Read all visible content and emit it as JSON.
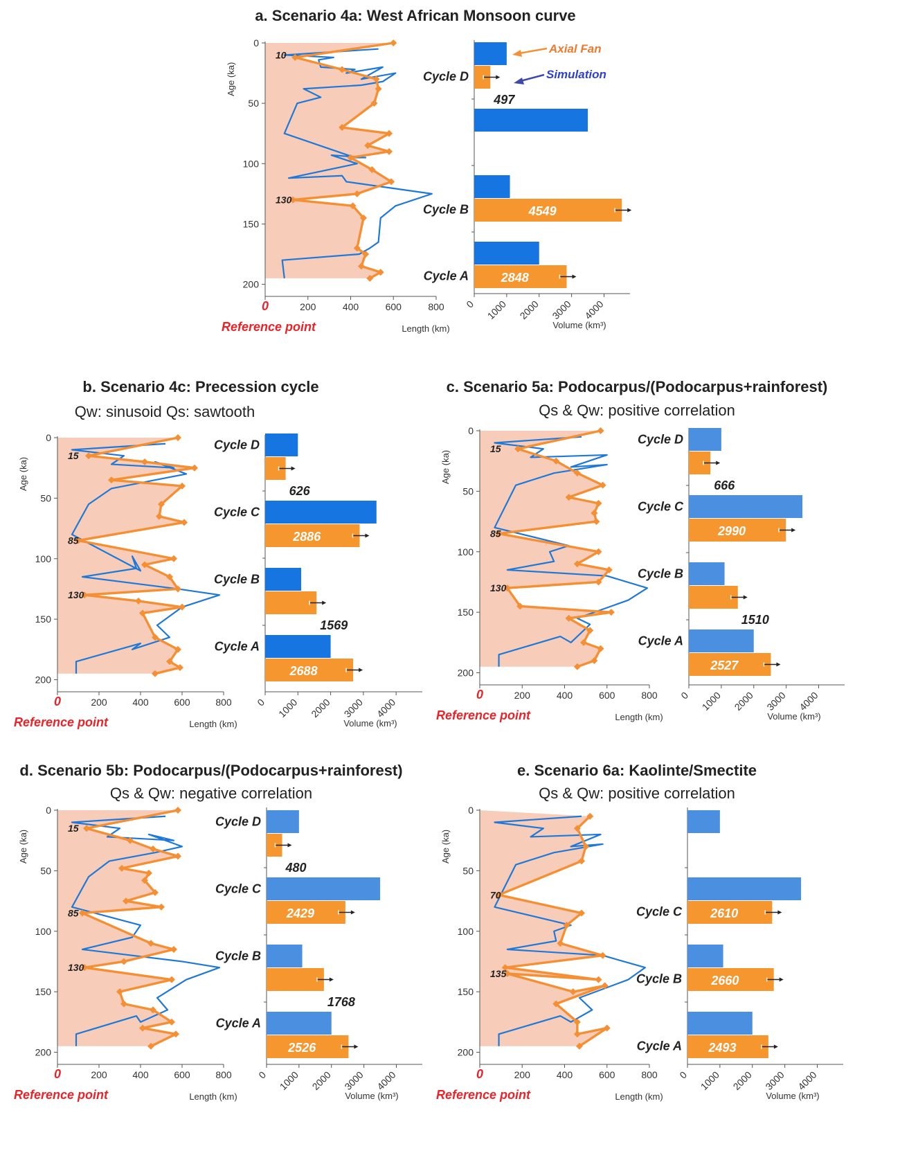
{
  "colors": {
    "shade": "#f7cdb9",
    "fan": "#f58f33",
    "fan_bar": "#f5962e",
    "sim": "#1e78d8",
    "sim_bar_dark": "#1675e0",
    "sim_bar_light": "#4a8fe0",
    "ref": "#e8242a"
  },
  "chart_data": [
    {
      "id": "a",
      "type": "line",
      "title": "a. Scenario 4a: West African Monsoon curve",
      "subtitle": "",
      "ylabel": "Age (ka)",
      "xlabel": "Length (km)",
      "vol_label": "Volume (km³)",
      "ref_label": "Reference point",
      "ref_tick": "0",
      "ylim": [
        0,
        210
      ],
      "xlim": [
        0,
        800
      ],
      "vlim": [
        0,
        4800
      ],
      "yticks": [
        "0",
        "50",
        "100",
        "150",
        "200"
      ],
      "xticks": [
        "0",
        "200",
        "400",
        "600",
        "800"
      ],
      "vticks": [
        "0",
        "1000",
        "2000",
        "3000",
        "4000"
      ],
      "shade_max_age": 195,
      "series": [
        {
          "name": "Axial Fan",
          "x": [
            600,
            140,
            360,
            520,
            530,
            510,
            360,
            580,
            480,
            580,
            400,
            500,
            590,
            430,
            130,
            410,
            460,
            430,
            470,
            450,
            540,
            490
          ],
          "y": [
            0,
            12,
            22,
            30,
            38,
            50,
            70,
            75,
            85,
            90,
            95,
            105,
            115,
            125,
            130,
            135,
            145,
            170,
            175,
            185,
            190,
            195
          ]
        },
        {
          "name": "Simulation",
          "x": [
            530,
            90,
            320,
            250,
            260,
            420,
            380,
            550,
            450,
            610,
            550,
            450,
            180,
            260,
            150,
            90,
            420,
            470,
            310,
            430,
            110,
            360,
            380,
            780,
            610,
            540,
            530,
            490,
            440,
            80,
            90
          ],
          "y": [
            5,
            10,
            12,
            14,
            20,
            22,
            25,
            20,
            30,
            25,
            32,
            35,
            38,
            45,
            50,
            75,
            95,
            95,
            93,
            100,
            112,
            110,
            115,
            125,
            135,
            145,
            165,
            170,
            175,
            180,
            195
          ]
        }
      ],
      "annotations": [
        {
          "text": "10",
          "y": 10
        },
        {
          "text": "130",
          "y": 130
        }
      ],
      "legend": {
        "axial": "Axial Fan",
        "sim": "Simulation"
      },
      "cycles": [
        {
          "label": "Cycle D",
          "fan": 497,
          "sim": 1000,
          "fan_text": "497",
          "label_on": "fan"
        },
        {
          "label": "",
          "fan": null,
          "sim": 3500,
          "fan_text": "",
          "label_on": "none"
        },
        {
          "label": "Cycle B",
          "fan": 4549,
          "sim": 1100,
          "fan_text": "4549",
          "label_on": "fan"
        },
        {
          "label": "Cycle A",
          "fan": 2848,
          "sim": 2000,
          "fan_text": "2848",
          "label_on": "fan"
        }
      ]
    },
    {
      "id": "b",
      "type": "line",
      "title": "b. Scenario 4c: Precession cycle",
      "subtitle": "Qw: sinusoid   Qs: sawtooth",
      "ylabel": "Age (ka)",
      "xlabel": "Length (km)",
      "vol_label": "Volume (km³)",
      "ref_label": "Reference point",
      "ref_tick": "0",
      "ylim": [
        0,
        210
      ],
      "xlim": [
        0,
        800
      ],
      "vlim": [
        0,
        4800
      ],
      "yticks": [
        "0",
        "50",
        "100",
        "150",
        "200"
      ],
      "xticks": [
        "0",
        "200",
        "400",
        "600",
        "800"
      ],
      "vticks": [
        "0",
        "1000",
        "2000",
        "3000",
        "4000"
      ],
      "shade_max_age": 195,
      "series": [
        {
          "name": "Axial Fan",
          "x": [
            580,
            150,
            420,
            660,
            260,
            600,
            500,
            490,
            610,
            100,
            560,
            420,
            540,
            580,
            130,
            390,
            600,
            410,
            470,
            580,
            540,
            590,
            470
          ],
          "y": [
            0,
            15,
            20,
            25,
            35,
            40,
            55,
            65,
            70,
            85,
            100,
            105,
            115,
            125,
            130,
            135,
            140,
            145,
            165,
            175,
            185,
            190,
            195
          ]
        },
        {
          "name": "Simulation",
          "x": [
            520,
            70,
            320,
            260,
            560,
            470,
            620,
            470,
            260,
            150,
            70,
            400,
            360,
            380,
            120,
            580,
            780,
            600,
            480,
            540,
            360,
            400,
            90,
            90
          ],
          "y": [
            5,
            10,
            15,
            22,
            25,
            20,
            30,
            35,
            42,
            55,
            80,
            110,
            98,
            108,
            115,
            125,
            130,
            140,
            155,
            165,
            175,
            170,
            185,
            195
          ]
        }
      ],
      "annotations": [
        {
          "text": "15",
          "y": 15
        },
        {
          "text": "85",
          "y": 85
        },
        {
          "text": "130",
          "y": 130
        }
      ],
      "legend": {
        "axial": "",
        "sim": ""
      },
      "cycles": [
        {
          "label": "Cycle D",
          "fan": 626,
          "sim": 1000,
          "fan_text": "626",
          "label_on": "sim"
        },
        {
          "label": "Cycle C",
          "fan": 2886,
          "sim": 3400,
          "fan_text": "2886",
          "label_on": "sim"
        },
        {
          "label": "Cycle B",
          "fan": 1569,
          "sim": 1100,
          "fan_text": "1569",
          "label_on": "sim"
        },
        {
          "label": "Cycle A",
          "fan": 2688,
          "sim": 2000,
          "fan_text": "2688",
          "label_on": "sim"
        }
      ]
    },
    {
      "id": "c",
      "type": "line",
      "title": "c. Scenario 5a: Podocarpus/(Podocarpus+rainforest)",
      "subtitle": "Qs & Qw: positive correlation",
      "ylabel": "Age (ka)",
      "xlabel": "Length (km)",
      "vol_label": "Volume (km³)",
      "ref_label": "Reference point",
      "ref_tick": "0",
      "ylim": [
        0,
        210
      ],
      "xlim": [
        0,
        800
      ],
      "vlim": [
        0,
        4800
      ],
      "yticks": [
        "0",
        "50",
        "100",
        "150",
        "200"
      ],
      "xticks": [
        "0",
        "200",
        "400",
        "600",
        "800"
      ],
      "vticks": [
        "0",
        "1000",
        "2000",
        "3000",
        "4000"
      ],
      "shade_max_age": 195,
      "series": [
        {
          "name": "Axial Fan",
          "x": [
            570,
            180,
            360,
            460,
            580,
            420,
            560,
            540,
            550,
            90,
            560,
            460,
            610,
            560,
            130,
            190,
            620,
            420,
            520,
            490,
            570,
            540,
            460
          ],
          "y": [
            0,
            15,
            25,
            35,
            45,
            55,
            60,
            68,
            75,
            85,
            100,
            110,
            115,
            125,
            130,
            145,
            150,
            155,
            165,
            175,
            180,
            190,
            195
          ]
        },
        {
          "name": "Simulation",
          "x": [
            480,
            70,
            300,
            240,
            600,
            430,
            600,
            350,
            170,
            70,
            420,
            330,
            350,
            130,
            600,
            790,
            700,
            460,
            520,
            430,
            380,
            90,
            90
          ],
          "y": [
            5,
            10,
            15,
            22,
            20,
            30,
            28,
            35,
            45,
            80,
            95,
            100,
            108,
            115,
            120,
            130,
            140,
            155,
            160,
            175,
            170,
            185,
            195
          ]
        }
      ],
      "annotations": [
        {
          "text": "15",
          "y": 15
        },
        {
          "text": "85",
          "y": 85
        },
        {
          "text": "130",
          "y": 130
        }
      ],
      "legend": {
        "axial": "",
        "sim": ""
      },
      "cycles": [
        {
          "label": "Cycle D",
          "fan": 666,
          "sim": 1000,
          "fan_text": "666",
          "label_on": "sim"
        },
        {
          "label": "Cycle C",
          "fan": 2990,
          "sim": 3500,
          "fan_text": "2990",
          "label_on": "sim"
        },
        {
          "label": "Cycle B",
          "fan": 1510,
          "sim": 1100,
          "fan_text": "1510",
          "label_on": "sim"
        },
        {
          "label": "Cycle A",
          "fan": 2527,
          "sim": 2000,
          "fan_text": "2527",
          "label_on": "sim"
        }
      ]
    },
    {
      "id": "d",
      "type": "line",
      "title": "d. Scenario 5b: Podocarpus/(Podocarpus+rainforest)",
      "subtitle": "Qs & Qw: negative correlation",
      "ylabel": "Age (ka)",
      "xlabel": "Length (km)",
      "vol_label": "Volume (km³)",
      "ref_label": "Reference point",
      "ref_tick": "0",
      "ylim": [
        0,
        210
      ],
      "xlim": [
        0,
        800
      ],
      "vlim": [
        0,
        4800
      ],
      "yticks": [
        "0",
        "50",
        "100",
        "150",
        "200"
      ],
      "xticks": [
        "0",
        "200",
        "400",
        "600",
        "800"
      ],
      "vticks": [
        "0",
        "1000",
        "2000",
        "3000",
        "4000"
      ],
      "shade_max_age": 195,
      "series": [
        {
          "name": "Axial Fan",
          "x": [
            580,
            140,
            350,
            460,
            580,
            310,
            440,
            420,
            470,
            330,
            500,
            120,
            450,
            560,
            320,
            130,
            550,
            300,
            320,
            460,
            550,
            410,
            570,
            450
          ],
          "y": [
            0,
            15,
            25,
            32,
            38,
            48,
            52,
            58,
            68,
            75,
            80,
            85,
            110,
            115,
            125,
            130,
            140,
            150,
            160,
            165,
            175,
            180,
            185,
            195
          ]
        },
        {
          "name": "Simulation",
          "x": [
            520,
            70,
            300,
            240,
            560,
            440,
            600,
            470,
            250,
            150,
            70,
            400,
            360,
            120,
            600,
            780,
            620,
            480,
            530,
            400,
            380,
            90,
            90
          ],
          "y": [
            5,
            10,
            15,
            22,
            25,
            20,
            30,
            35,
            42,
            55,
            80,
            95,
            105,
            115,
            125,
            130,
            140,
            155,
            165,
            175,
            170,
            185,
            195
          ]
        }
      ],
      "annotations": [
        {
          "text": "15",
          "y": 15
        },
        {
          "text": "85",
          "y": 85
        },
        {
          "text": "130",
          "y": 130
        }
      ],
      "legend": {
        "axial": "",
        "sim": ""
      },
      "cycles": [
        {
          "label": "Cycle D",
          "fan": 480,
          "sim": 1000,
          "fan_text": "480",
          "label_on": "sim"
        },
        {
          "label": "Cycle C",
          "fan": 2429,
          "sim": 3500,
          "fan_text": "2429",
          "label_on": "sim"
        },
        {
          "label": "Cycle B",
          "fan": 1768,
          "sim": 1100,
          "fan_text": "1768",
          "label_on": "sim"
        },
        {
          "label": "Cycle A",
          "fan": 2526,
          "sim": 2000,
          "fan_text": "2526",
          "label_on": "sim"
        }
      ]
    },
    {
      "id": "e",
      "type": "line",
      "title": "e. Scenario 6a: Kaolinte/Smectite",
      "subtitle": "Qs & Qw: positive correlation",
      "ylabel": "Age (ka)",
      "xlabel": "Length (km)",
      "vol_label": "Volume (km³)",
      "ref_label": "Reference point",
      "ref_tick": "0",
      "ylim": [
        0,
        210
      ],
      "xlim": [
        0,
        800
      ],
      "vlim": [
        0,
        4800
      ],
      "yticks": [
        "0",
        "50",
        "100",
        "150",
        "200"
      ],
      "xticks": [
        "0",
        "200",
        "400",
        "600",
        "800"
      ],
      "vticks": [
        "0",
        "1000",
        "2000",
        "3000",
        "4000"
      ],
      "shade_max_age": 195,
      "series": [
        {
          "name": "Axial Fan",
          "x": [
            520,
            460,
            500,
            480,
            90,
            480,
            410,
            380,
            580,
            120,
            560,
            130,
            440,
            590,
            360,
            460,
            460,
            600,
            470
          ],
          "y": [
            5,
            15,
            30,
            42,
            70,
            85,
            95,
            110,
            120,
            130,
            140,
            135,
            150,
            145,
            160,
            175,
            185,
            180,
            195
          ]
        },
        {
          "name": "Simulation",
          "x": [
            480,
            70,
            300,
            240,
            570,
            430,
            580,
            350,
            170,
            70,
            430,
            350,
            360,
            130,
            580,
            780,
            700,
            470,
            530,
            430,
            380,
            90,
            90
          ],
          "y": [
            5,
            10,
            15,
            22,
            20,
            30,
            28,
            35,
            45,
            80,
            95,
            100,
            108,
            115,
            120,
            130,
            140,
            155,
            165,
            175,
            170,
            185,
            195
          ]
        }
      ],
      "annotations": [
        {
          "text": "70",
          "y": 70
        },
        {
          "text": "135",
          "y": 135
        }
      ],
      "legend": {
        "axial": "",
        "sim": ""
      },
      "cycles": [
        {
          "label": "",
          "fan": null,
          "sim": 1000,
          "fan_text": "",
          "label_on": "none"
        },
        {
          "label": "Cycle C",
          "fan": 2610,
          "sim": 3500,
          "fan_text": "2610",
          "label_on": "fan"
        },
        {
          "label": "Cycle B",
          "fan": 2660,
          "sim": 1100,
          "fan_text": "2660",
          "label_on": "fan"
        },
        {
          "label": "Cycle A",
          "fan": 2493,
          "sim": 2000,
          "fan_text": "2493",
          "label_on": "fan"
        }
      ]
    }
  ]
}
